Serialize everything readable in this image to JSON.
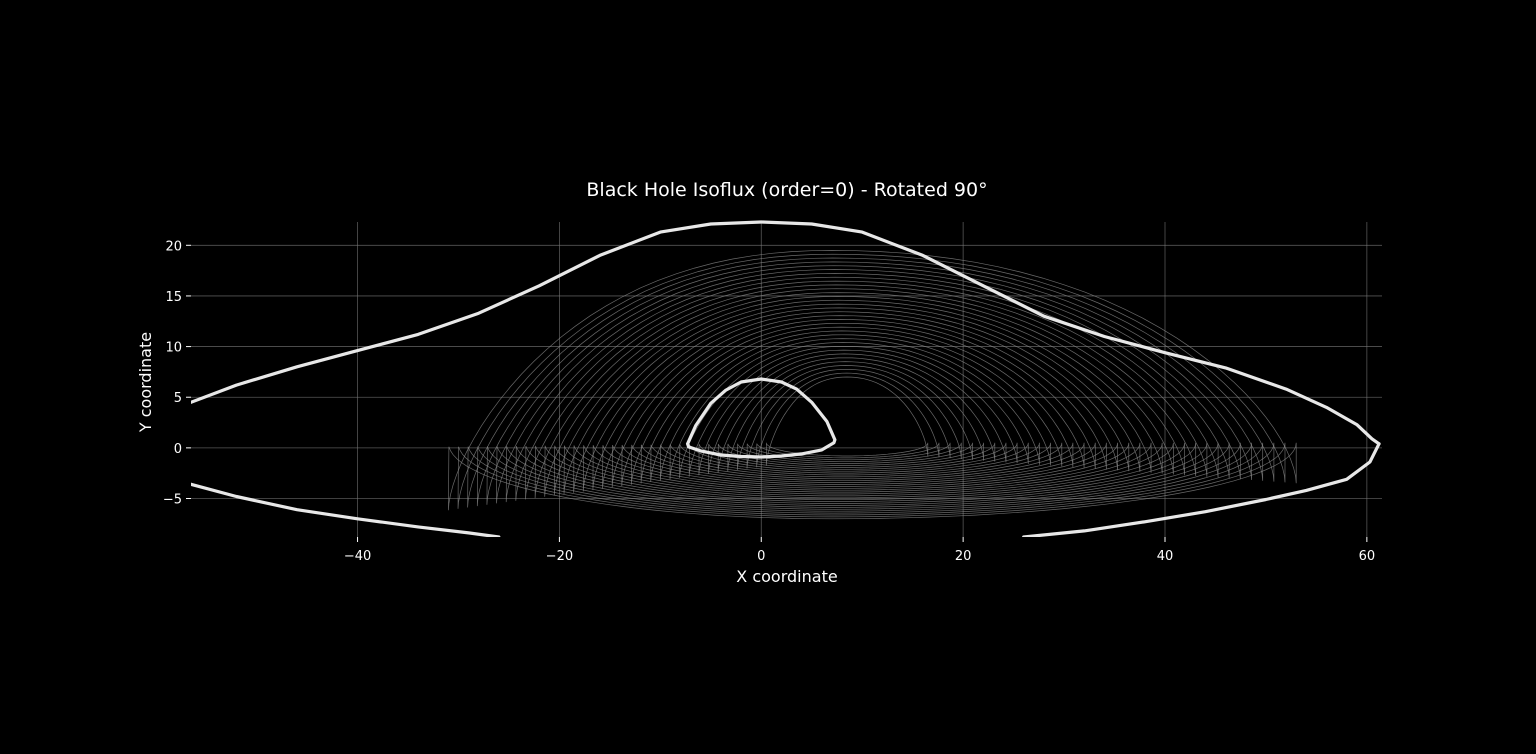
{
  "chart_data": {
    "type": "line",
    "title": "Black Hole Isoflux (order=0) - Rotated 90°",
    "xlabel": "X coordinate",
    "ylabel": "Y coordinate",
    "xlim": [
      -56.5,
      61.5
    ],
    "ylim": [
      -8.8,
      22.3
    ],
    "xticks": [
      -40,
      -20,
      0,
      20,
      40,
      60
    ],
    "yticks": [
      -5,
      0,
      5,
      10,
      15,
      20
    ],
    "xtick_labels": [
      "−40",
      "−20",
      "0",
      "20",
      "40",
      "60"
    ],
    "ytick_labels": [
      "−5",
      "0",
      "5",
      "10",
      "15",
      "20"
    ],
    "grid": true,
    "background": "#000000",
    "colors": {
      "text": "#ffffff",
      "grid": "#7a7a7a",
      "thick_curve": "#e8e8e8",
      "thin_curve": "#8c8c8c"
    },
    "series": [
      {
        "role": "outer-isoflux-upper",
        "x": [
          -56.5,
          -52,
          -46,
          -40,
          -34,
          -28,
          -22,
          -16,
          -10,
          -5,
          0,
          5,
          10,
          16,
          22,
          28,
          34,
          40,
          46,
          52,
          56,
          59,
          60.5,
          61.2
        ],
        "y": [
          4.5,
          6.2,
          8.0,
          9.6,
          11.2,
          13.3,
          16.0,
          19.0,
          21.3,
          22.1,
          22.3,
          22.1,
          21.3,
          19.0,
          16.0,
          13.0,
          11.0,
          9.4,
          7.9,
          5.8,
          4.0,
          2.3,
          0.9,
          0.4
        ]
      },
      {
        "role": "outer-isoflux-lower-left",
        "x": [
          -56.5,
          -52,
          -46,
          -40,
          -34,
          -29,
          -26
        ],
        "y": [
          -3.6,
          -4.8,
          -6.1,
          -7.0,
          -7.8,
          -8.4,
          -8.8
        ]
      },
      {
        "role": "outer-isoflux-lower-right",
        "x": [
          26,
          32,
          38,
          44,
          50,
          54,
          58,
          60.3,
          61.2
        ],
        "y": [
          -8.8,
          -8.2,
          -7.3,
          -6.3,
          -5.1,
          -4.2,
          -3.1,
          -1.4,
          0.4
        ]
      },
      {
        "role": "shadow-boundary",
        "x": [
          -7.3,
          -6.5,
          -5.0,
          -3.5,
          -2.0,
          0,
          2.0,
          3.5,
          5.0,
          6.5,
          7.3,
          7.2,
          6.0,
          4.0,
          2.0,
          0,
          -2.0,
          -4.0,
          -6.0,
          -7.2,
          -7.3
        ],
        "y": [
          0.4,
          2.2,
          4.4,
          5.7,
          6.5,
          6.8,
          6.5,
          5.8,
          4.5,
          2.6,
          0.8,
          0.5,
          -0.2,
          -0.6,
          -0.8,
          -0.9,
          -0.85,
          -0.7,
          -0.3,
          0.1,
          0.4
        ]
      }
    ]
  }
}
